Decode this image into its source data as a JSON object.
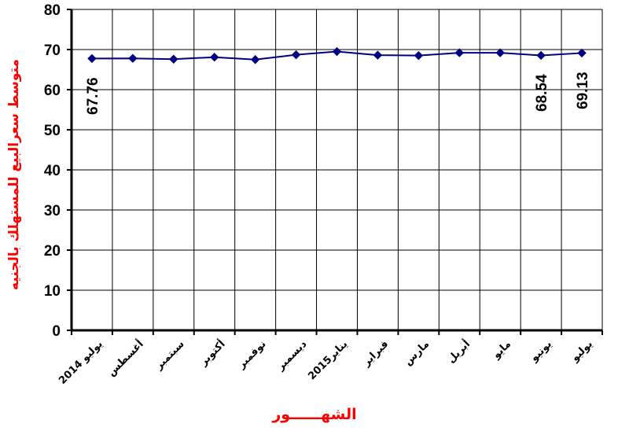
{
  "chart_data": {
    "type": "line",
    "categories": [
      "يوليو 2014",
      "أغسطس",
      "سبتمبر",
      "أكتوبر",
      "نوفمبر",
      "ديسمبر",
      "يناير2015",
      "فبراير",
      "مارس",
      "أبريل",
      "مايو",
      "يونيو",
      "يوليو"
    ],
    "series": [
      {
        "values": [
          67.76,
          67.8,
          67.6,
          68.1,
          67.5,
          68.7,
          69.5,
          68.6,
          68.5,
          69.2,
          69.2,
          68.54,
          69.13
        ]
      }
    ],
    "data_labels": [
      {
        "index": 0,
        "text": "67.76"
      },
      {
        "index": 11,
        "text": "68.54"
      },
      {
        "index": 12,
        "text": "69.13"
      }
    ],
    "y_ticks": [
      "0",
      "10",
      "20",
      "30",
      "40",
      "50",
      "60",
      "70",
      "80"
    ],
    "ylim": [
      0,
      80
    ],
    "xlabel": "الشهــــــور",
    "ylabel": "متوسط سعرالبيع للمستهلك بالجنيه",
    "grid": true,
    "legend": "none",
    "colors": {
      "line": "#000080",
      "marker": "#000080",
      "axis_title": "#ff0000",
      "grid": "#000000"
    }
  }
}
